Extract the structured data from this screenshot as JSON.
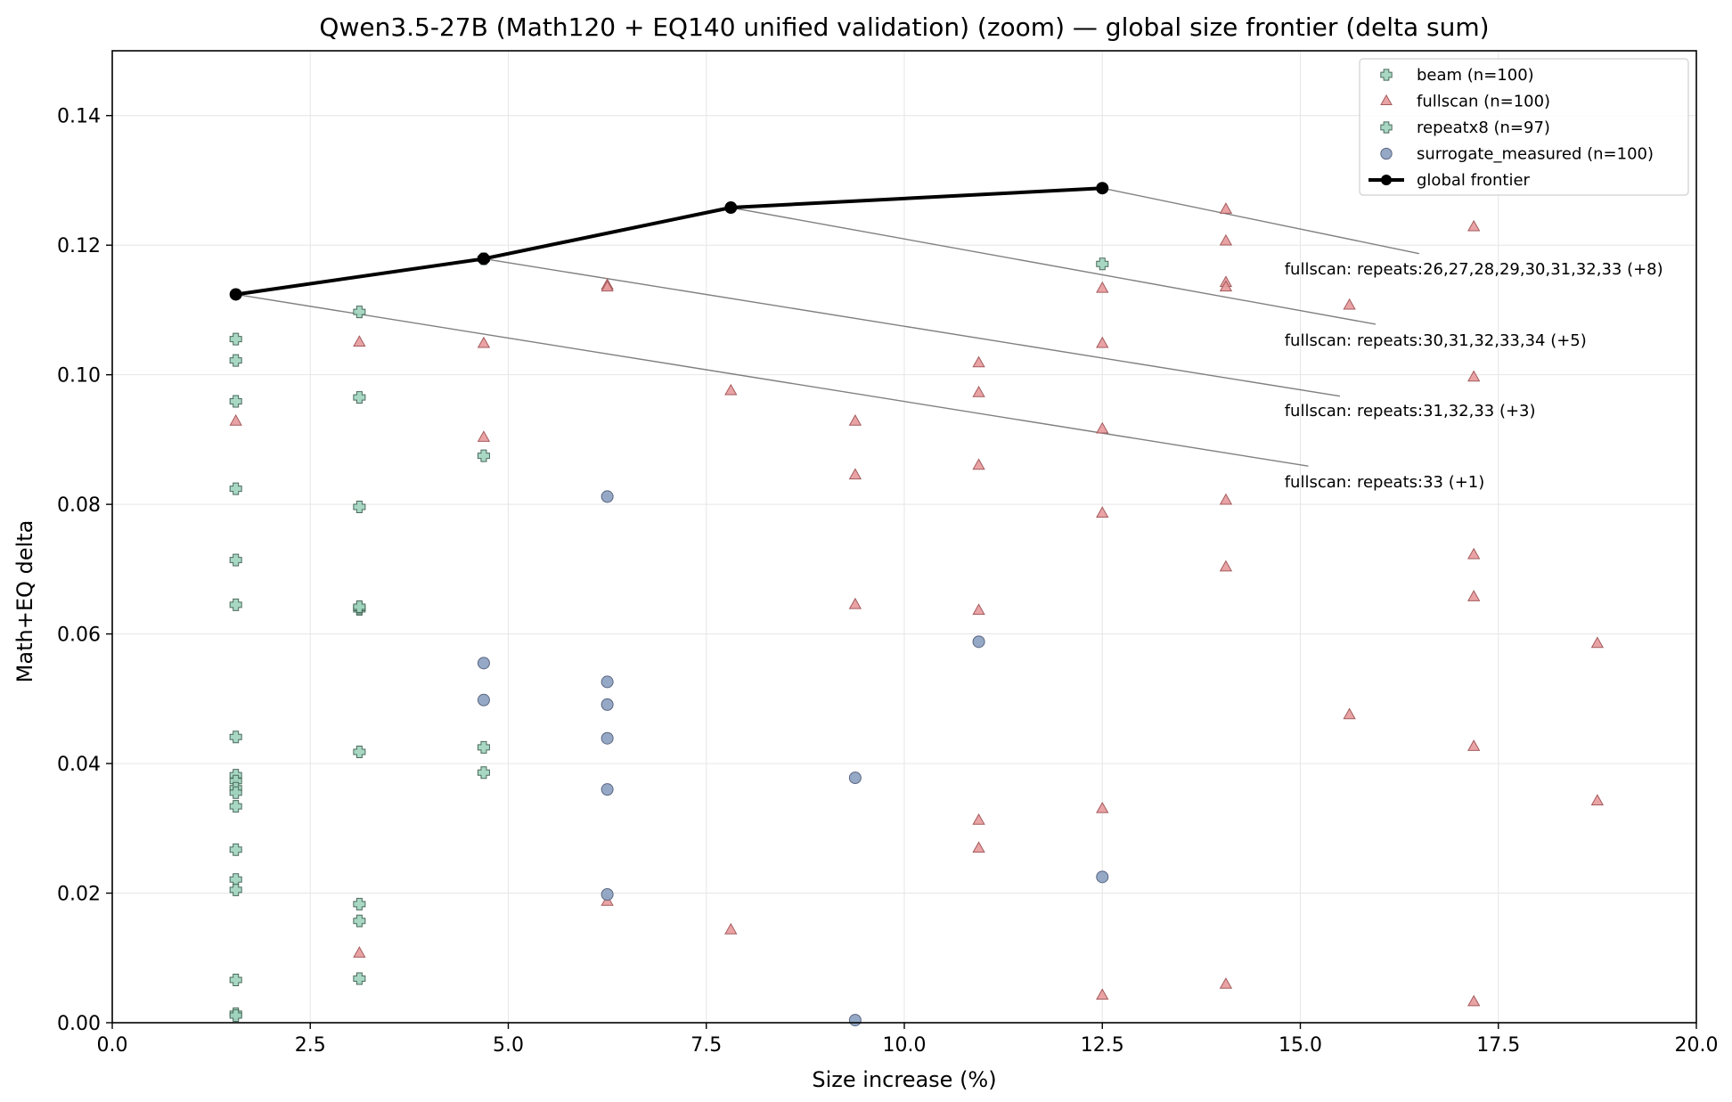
{
  "chart_data": {
    "type": "scatter",
    "title": "Qwen3.5-27B (Math120 + EQ140 unified validation) (zoom) — global size frontier (delta sum)",
    "xlabel": "Size increase (%)",
    "ylabel": "Math+EQ delta",
    "xlim": [
      0,
      20
    ],
    "ylim": [
      0,
      0.15
    ],
    "xticks": [
      0,
      2.5,
      5,
      7.5,
      10,
      12.5,
      15,
      17.5,
      20
    ],
    "xtick_labels": [
      "0.0",
      "2.5",
      "5.0",
      "7.5",
      "10.0",
      "12.5",
      "15.0",
      "17.5",
      "20.0"
    ],
    "yticks": [
      0,
      0.02,
      0.04,
      0.06,
      0.08,
      0.1,
      0.12,
      0.14
    ],
    "ytick_labels": [
      "0.00",
      "0.02",
      "0.04",
      "0.06",
      "0.08",
      "0.10",
      "0.12",
      "0.14"
    ],
    "grid": true,
    "legend_position": "top-right",
    "series": [
      {
        "name": "beam (n=100)",
        "marker": "plus",
        "color": "#9fd4be",
        "x": [
          1.56,
          1.56,
          1.56,
          1.56,
          3.12,
          3.12
        ],
        "y": [
          0.1055,
          0.1022,
          0.0824,
          0.0645,
          0.0965,
          0.0638
        ]
      },
      {
        "name": "fullscan (n=100)",
        "marker": "triangle",
        "color": "#e8999b",
        "x": [
          1.56,
          3.12,
          3.12,
          4.69,
          4.69,
          6.25,
          6.25,
          6.25,
          7.81,
          7.81,
          9.38,
          9.38,
          9.38,
          10.94,
          10.94,
          10.94,
          10.94,
          10.94,
          10.94,
          12.5,
          12.5,
          12.5,
          12.5,
          12.5,
          12.5,
          14.06,
          14.06,
          14.06,
          14.06,
          14.06,
          14.06,
          14.06,
          15.62,
          15.62,
          17.19,
          17.19,
          17.19,
          17.19,
          17.19,
          17.19,
          18.75,
          18.75
        ],
        "y": [
          0.0928,
          0.105,
          0.0107,
          0.1048,
          0.0903,
          0.1138,
          0.1135,
          0.0187,
          0.0975,
          0.0143,
          0.0928,
          0.0845,
          0.0645,
          0.1018,
          0.0972,
          0.086,
          0.0636,
          0.0312,
          0.0269,
          0.1133,
          0.1048,
          0.0916,
          0.0786,
          0.033,
          0.0042,
          0.1255,
          0.1206,
          0.1142,
          0.1135,
          0.0806,
          0.0703,
          0.0059,
          0.1107,
          0.0475,
          0.1228,
          0.0996,
          0.0722,
          0.0657,
          0.0426,
          0.0032,
          0.0585,
          0.0342
        ]
      },
      {
        "name": "repeatx8 (n=97)",
        "marker": "plus",
        "color": "#9fd4be",
        "x": [
          1.56,
          1.56,
          1.56,
          1.56,
          1.56,
          1.56,
          1.56,
          1.56,
          1.56,
          1.56,
          1.56,
          1.56,
          1.56,
          1.56,
          3.12,
          3.12,
          3.12,
          3.12,
          3.12,
          3.12,
          3.12,
          3.12,
          4.69,
          4.69,
          4.69,
          4.69,
          12.5
        ],
        "y": [
          0.0959,
          0.0714,
          0.0441,
          0.0382,
          0.0373,
          0.0362,
          0.0355,
          0.0334,
          0.0267,
          0.0221,
          0.0205,
          0.0066,
          0.0014,
          0.0011,
          0.1097,
          0.0796,
          0.064,
          0.0418,
          0.0183,
          0.0157,
          0.0068,
          0.0642,
          0.1179,
          0.0875,
          0.0425,
          0.0386,
          0.1171
        ]
      },
      {
        "name": "surrogate_measured (n=100)",
        "marker": "circle",
        "color": "#8fa4c4",
        "x": [
          4.69,
          4.69,
          6.25,
          6.25,
          6.25,
          6.25,
          6.25,
          6.25,
          9.38,
          9.38,
          10.94,
          12.5
        ],
        "y": [
          0.0555,
          0.0498,
          0.0812,
          0.0526,
          0.0491,
          0.0439,
          0.036,
          0.0198,
          0.0378,
          0.0004,
          0.0588,
          0.0225
        ]
      }
    ],
    "frontier": {
      "name": "global frontier",
      "color": "#000000",
      "x": [
        1.56,
        4.69,
        7.81,
        12.5
      ],
      "y": [
        0.1124,
        0.1179,
        0.1258,
        0.1288
      ]
    },
    "annotations": [
      {
        "text": "fullscan: repeats:26,27,28,29,30,31,32,33 (+8)",
        "from": [
          12.5,
          0.1288
        ],
        "to": [
          16.5,
          0.1187
        ],
        "label_at": [
          14.8,
          0.1155
        ]
      },
      {
        "text": "fullscan: repeats:30,31,32,33,34 (+5)",
        "from": [
          7.81,
          0.1258
        ],
        "to": [
          15.95,
          0.1078
        ],
        "label_at": [
          14.8,
          0.1045
        ]
      },
      {
        "text": "fullscan: repeats:31,32,33 (+3)",
        "from": [
          4.69,
          0.1179
        ],
        "to": [
          15.5,
          0.0967
        ],
        "label_at": [
          14.8,
          0.0936
        ]
      },
      {
        "text": "fullscan: repeats:33 (+1)",
        "from": [
          1.56,
          0.1124
        ],
        "to": [
          15.1,
          0.0859
        ],
        "label_at": [
          14.8,
          0.0826
        ]
      }
    ]
  }
}
